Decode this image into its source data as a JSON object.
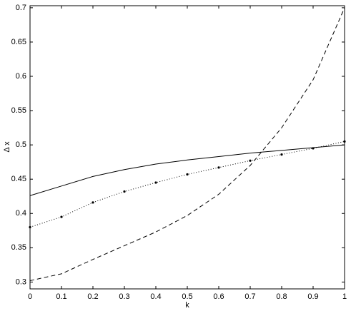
{
  "chart_data": {
    "type": "line",
    "xlabel": "k",
    "ylabel": "Δ x",
    "x": [
      0,
      0.1,
      0.2,
      0.3,
      0.4,
      0.5,
      0.6,
      0.7,
      0.8,
      0.9,
      1
    ],
    "series": [
      {
        "color": "#000000",
        "dash": "solid",
        "marker": "none",
        "values": [
          0.426,
          0.44,
          0.454,
          0.464,
          0.472,
          0.478,
          0.483,
          0.488,
          0.492,
          0.496,
          0.5
        ]
      },
      {
        "color": "#000000",
        "dash": "dotted",
        "marker": "dot",
        "values": [
          0.38,
          0.395,
          0.416,
          0.432,
          0.445,
          0.457,
          0.467,
          0.477,
          0.486,
          0.495,
          0.505
        ]
      },
      {
        "color": "#000000",
        "dash": "dashed",
        "marker": "none",
        "values": [
          0.302,
          0.312,
          0.333,
          0.353,
          0.373,
          0.397,
          0.428,
          0.47,
          0.525,
          0.595,
          0.7
        ]
      }
    ],
    "xlim": [
      0,
      1
    ],
    "xticks": [
      0,
      0.1,
      0.2,
      0.3,
      0.4,
      0.5,
      0.6,
      0.7,
      0.8,
      0.9,
      1
    ],
    "ylim": [
      0.29,
      0.703
    ],
    "yticks": [
      0.3,
      0.35,
      0.4,
      0.45,
      0.5,
      0.55,
      0.6,
      0.65,
      0.7
    ],
    "grid": false
  }
}
